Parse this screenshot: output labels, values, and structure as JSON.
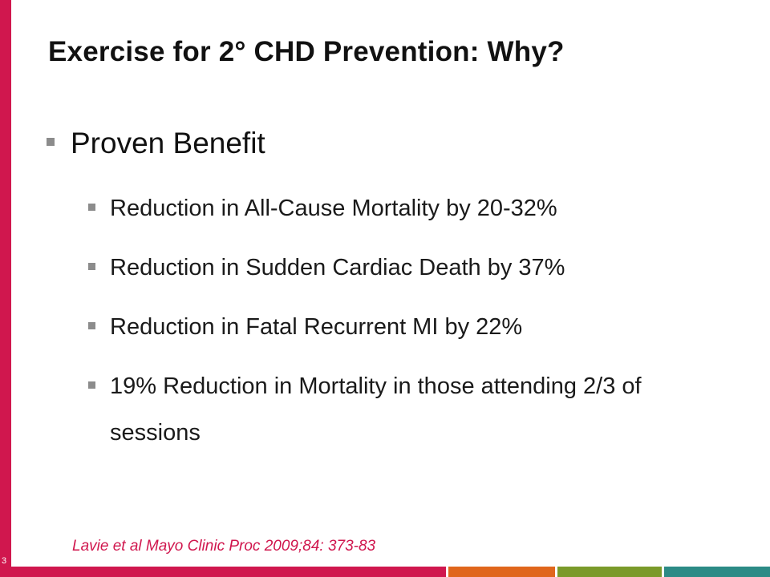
{
  "slide": {
    "number": "3",
    "title": "Exercise for 2° CHD Prevention: Why?",
    "main_bullet": "Proven Benefit",
    "sub_bullets": [
      "Reduction in All-Cause Mortality by 20-32%",
      "Reduction in Sudden Cardiac Death by 37%",
      "Reduction in Fatal Recurrent MI by 22%",
      "19% Reduction in Mortality in those attending 2/3 of sessions"
    ],
    "citation": "Lavie et al Mayo Clinic Proc 2009;84: 373-83"
  },
  "theme": {
    "accent": "#d0174e",
    "bullet_color": "#8c8c8c",
    "footer_colors": [
      "#d0174e",
      "#e0661c",
      "#7a9a2a",
      "#2c8b86"
    ]
  }
}
